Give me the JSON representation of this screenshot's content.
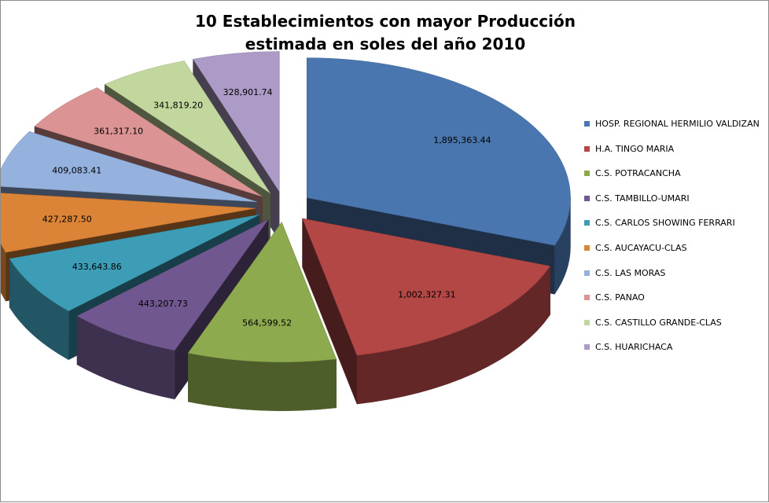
{
  "chart_data": {
    "type": "pie",
    "variant": "3d-exploded",
    "title_lines": [
      "10 Establecimientos con mayor Producción",
      "estimada en soles del año 2010"
    ],
    "legend_position": "right",
    "slices": [
      {
        "label": "HOSP. REGIONAL HERMILIO VALDIZAN",
        "value": 1895363.44,
        "value_text": "1,895,363.44",
        "color": "#4a76b0"
      },
      {
        "label": "H.A. TINGO MARIA",
        "value": 1002327.31,
        "value_text": "1,002,327.31",
        "color": "#b24745"
      },
      {
        "label": "C.S. POTRACANCHA",
        "value": 564599.52,
        "value_text": "564,599.52",
        "color": "#8eaa4f"
      },
      {
        "label": "C.S. TAMBILLO-UMARI",
        "value": 443207.73,
        "value_text": "443,207.73",
        "color": "#71578f"
      },
      {
        "label": "C.S. CARLOS SHOWING FERRARI",
        "value": 433643.86,
        "value_text": "433,643.86",
        "color": "#3d9db6"
      },
      {
        "label": "C.S. AUCAYACU-CLAS",
        "value": 427287.5,
        "value_text": "427,287.50",
        "color": "#db8438"
      },
      {
        "label": "C.S. LAS MORAS",
        "value": 409083.41,
        "value_text": "409,083.41",
        "color": "#95b2de"
      },
      {
        "label": "C.S. PANAO",
        "value": 361317.1,
        "value_text": "361,317.10",
        "color": "#dc9393"
      },
      {
        "label": "C.S. CASTILLO GRANDE-CLAS",
        "value": 341819.2,
        "value_text": "341,819.20",
        "color": "#c2d79d"
      },
      {
        "label": "C.S. HUARICHACA",
        "value": 328901.74,
        "value_text": "328,901.74",
        "color": "#ac9bc6"
      }
    ]
  }
}
